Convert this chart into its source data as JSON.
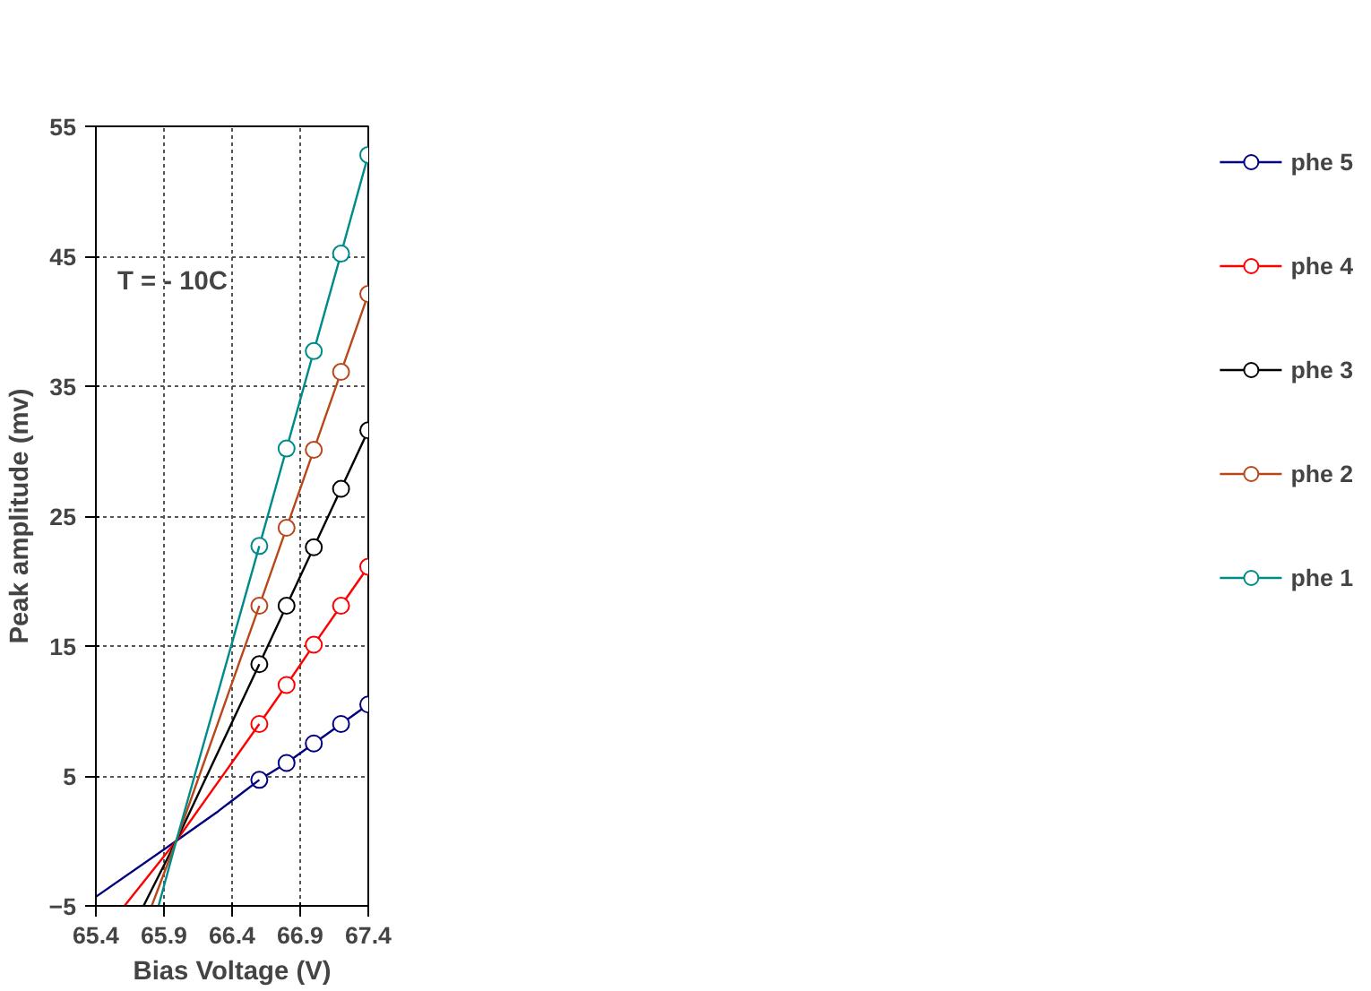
{
  "chart_data": {
    "type": "line",
    "xlabel": "Bias Voltage (V)",
    "ylabel": "Peak amplitude (mv)",
    "xlim": [
      65.4,
      67.4
    ],
    "xticks": [
      65.4,
      65.9,
      66.4,
      66.9,
      67.4
    ],
    "ylim": [
      -5,
      55
    ],
    "yticks": [
      -5,
      5,
      15,
      25,
      35,
      45,
      55
    ],
    "grid": true,
    "legend": "right",
    "marker": "circle",
    "line_style": "solid",
    "annotations": [
      "T = - 10C"
    ],
    "x": [
      66.6,
      66.8,
      67.0,
      67.2,
      67.4
    ],
    "series": [
      {
        "name": "phe 5",
        "color": "#000080",
        "values": [
          4.7,
          6.0,
          7.5,
          9.0,
          10.5
        ]
      },
      {
        "name": "phe 4",
        "color": "#ff0000",
        "values": [
          9.0,
          12.0,
          15.1,
          18.1,
          21.1
        ]
      },
      {
        "name": "phe 3",
        "color": "#000000",
        "values": [
          13.6,
          18.1,
          22.6,
          27.1,
          31.6
        ]
      },
      {
        "name": "phe 2",
        "color": "#b8471a",
        "values": [
          18.1,
          24.1,
          30.1,
          36.1,
          42.1
        ]
      },
      {
        "name": "phe 1",
        "color": "#008b8b",
        "values": [
          22.7,
          30.2,
          37.7,
          45.2,
          52.8
        ]
      },
      {
        "color": "#000080",
        "marker": "none",
        "x": [
          65.4,
          65.99,
          66.3,
          66.6
        ],
        "values": [
          -4.3,
          0,
          2.3,
          4.7
        ]
      },
      {
        "color": "#ff0000",
        "marker": "none",
        "x": [
          65.61,
          65.99,
          66.6
        ],
        "values": [
          -5,
          0,
          9.0
        ]
      },
      {
        "color": "#000000",
        "marker": "none",
        "x": [
          65.75,
          65.99,
          66.6
        ],
        "values": [
          -5,
          0,
          13.6
        ]
      },
      {
        "color": "#b8471a",
        "marker": "none",
        "x": [
          65.81,
          65.99,
          66.6
        ],
        "values": [
          -5,
          0,
          18.1
        ]
      },
      {
        "color": "#008b8b",
        "marker": "none",
        "x": [
          65.86,
          65.99,
          66.6
        ],
        "values": [
          -5,
          0,
          22.7
        ]
      }
    ]
  }
}
